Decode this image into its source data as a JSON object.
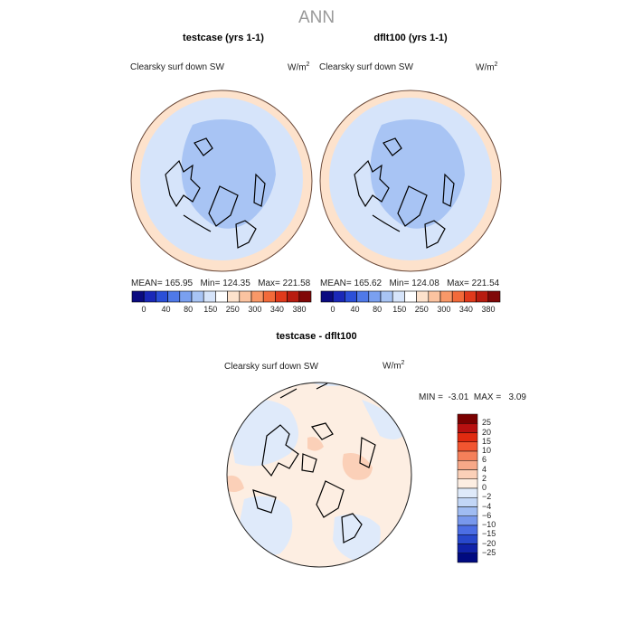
{
  "main_title": "ANN",
  "panels": [
    {
      "title": "testcase (yrs 1-1)",
      "variable": "Clearsky surf down SW",
      "units": "W/m",
      "units_exp": "2",
      "stats": {
        "mean_label": "MEAN=",
        "mean": "165.95",
        "min_label": "Min=",
        "min": "124.35",
        "max_label": "Max=",
        "max": "221.58"
      }
    },
    {
      "title": "dflt100 (yrs 1-1)",
      "variable": "Clearsky surf down SW",
      "units": "W/m",
      "units_exp": "2",
      "stats": {
        "mean_label": "MEAN=",
        "mean": "165.62",
        "min_label": "Min=",
        "min": "124.08",
        "max_label": "Max=",
        "max": "221.54"
      }
    }
  ],
  "diff_panel": {
    "title": "testcase - dflt100",
    "variable": "Clearsky surf down SW",
    "units": "W/m",
    "units_exp": "2",
    "stats": {
      "min_label": "MIN =",
      "min": "-3.01",
      "max_label": "MAX =",
      "max": "3.09"
    }
  },
  "colorbar_main": {
    "colors": [
      "#0b0b80",
      "#1a28b8",
      "#2b4fd8",
      "#4f79e8",
      "#7aa0f0",
      "#a8c4f4",
      "#d6e4fa",
      "#ffffff",
      "#fde2cc",
      "#fbc3a0",
      "#f89868",
      "#f26a3a",
      "#e03a1c",
      "#b81c10",
      "#800808"
    ],
    "tick_labels": [
      "0",
      "40",
      "80",
      "150",
      "250",
      "300",
      "340",
      "380"
    ]
  },
  "colorbar_diff": {
    "colors": [
      "#7a0000",
      "#b81010",
      "#e02a10",
      "#f25530",
      "#f5805a",
      "#f7a888",
      "#fbd0b8",
      "#fdeee2",
      "#dfeafa",
      "#c2d6f6",
      "#a0bcf2",
      "#7898ec",
      "#4c6ee4",
      "#2848cc",
      "#1022a8",
      "#000a80"
    ],
    "tick_labels": [
      "25",
      "20",
      "15",
      "10",
      "6",
      "4",
      "2",
      "0",
      "-2",
      "-4",
      "-6",
      "-10",
      "-15",
      "-20",
      "-25"
    ]
  },
  "legend_colors": {
    "ocean_main": "#d6e4fa",
    "arctic_main": "#a8c4f4",
    "rim_main": "#fde2cc",
    "diff_base": "#fdeee2",
    "diff_neg": "#dfeafa",
    "diff_pos": "#fbd0b8"
  }
}
